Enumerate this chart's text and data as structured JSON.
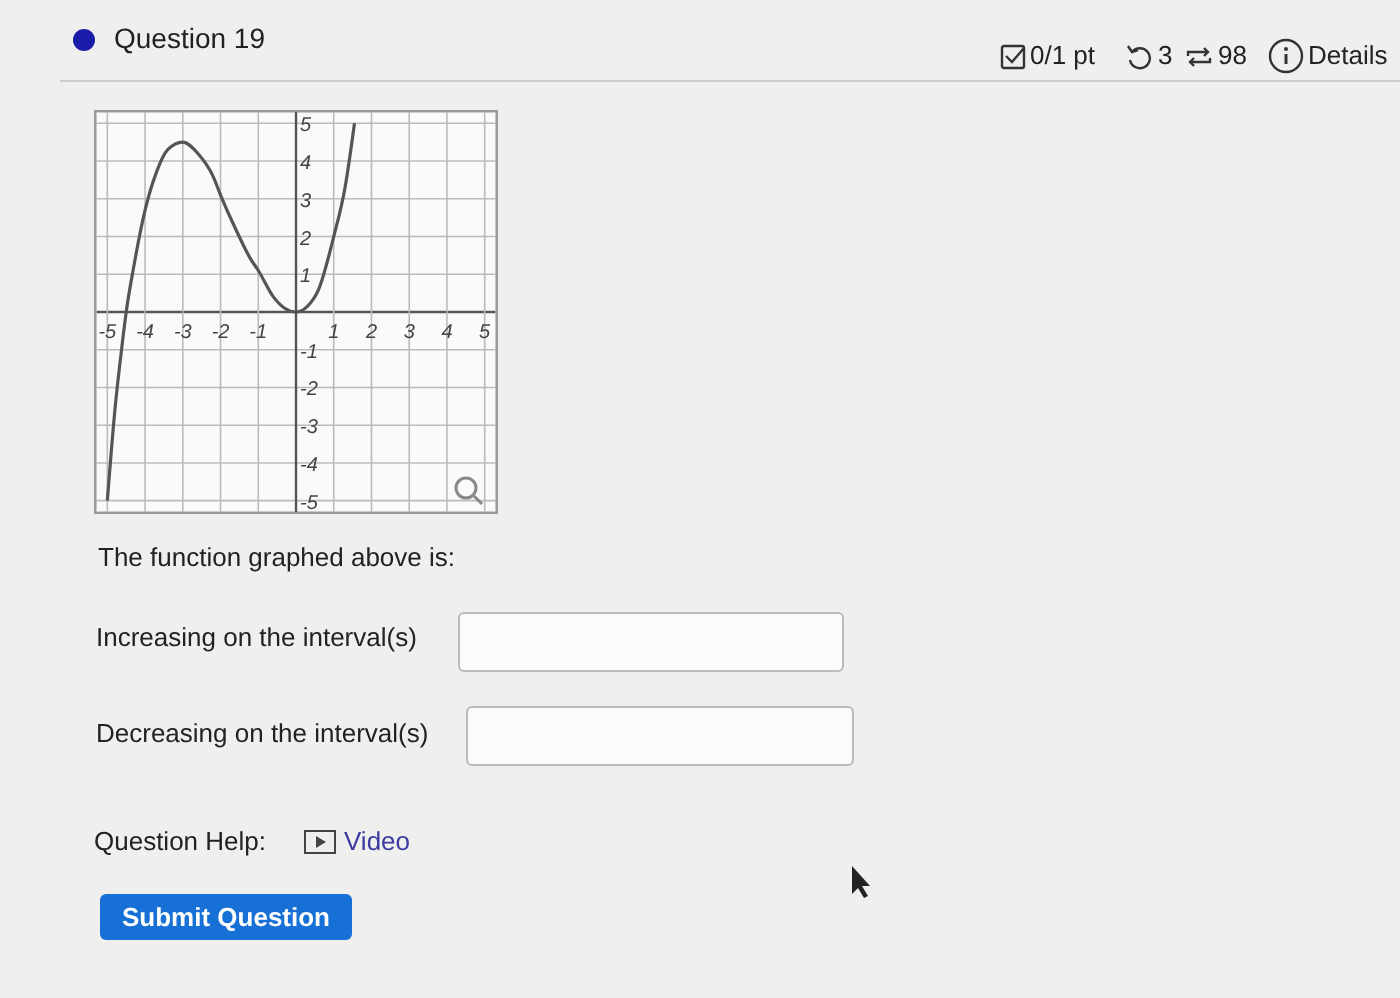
{
  "chart_data": {
    "type": "line",
    "title": "Question 19",
    "series": [
      {
        "color": "#555555",
        "x": [
          -5,
          -4.8,
          -4.6,
          -4.5,
          -4.3,
          -4,
          -3.7,
          -3.4,
          -3,
          -2.6,
          -2.2,
          -2,
          -1.6,
          -1.2,
          -1,
          -0.6,
          -0.3,
          0,
          0.3,
          0.6,
          1,
          1.3,
          1.55
        ],
        "values": [
          -5,
          -2.6,
          -0.8,
          0,
          1.2,
          2.7,
          3.7,
          4.3,
          4.5,
          4.2,
          3.6,
          3.1,
          2.2,
          1.4,
          1.1,
          0.4,
          0.1,
          0,
          0.15,
          0.6,
          2,
          3.3,
          5
        ]
      }
    ],
    "xlim": [
      -5.3,
      5.3
    ],
    "ylim": [
      -5.3,
      5.3
    ],
    "xticks": [
      -5,
      -4,
      -3,
      -2,
      -1,
      {
        "value": 0,
        "label": null
      },
      1,
      2,
      3,
      4,
      5
    ],
    "yticks": [
      -5,
      -4,
      -3,
      -2,
      -1,
      {
        "value": 0,
        "label": null
      },
      1,
      2,
      3,
      4,
      5
    ],
    "grid": true,
    "marker": "none",
    "line_style": "solid",
    "annotations": [
      "0/1 pt",
      "3",
      "98",
      "Details",
      "The function graphed above is:",
      "Increasing on the interval(s)",
      "Decreasing on the interval(s)",
      "Question Help:",
      "Video",
      "Submit Question"
    ]
  }
}
